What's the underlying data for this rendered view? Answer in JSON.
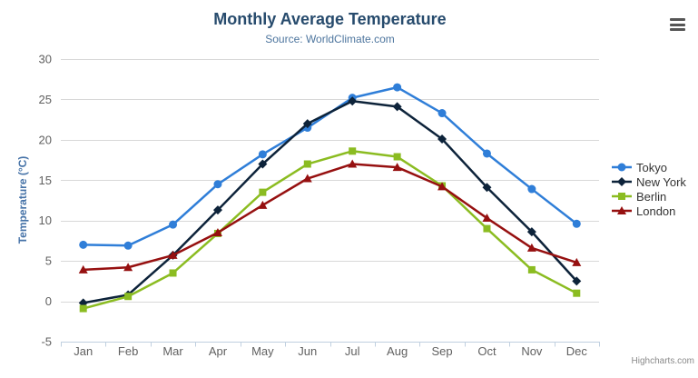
{
  "chart_data": {
    "type": "line",
    "title": "Monthly Average Temperature",
    "subtitle": "Source: WorldClimate.com",
    "xlabel": "",
    "ylabel": "Temperature (°C)",
    "ylim": [
      -5,
      30
    ],
    "yticks": [
      -5,
      0,
      5,
      10,
      15,
      20,
      25,
      30
    ],
    "grid": true,
    "legend_position": "right",
    "categories": [
      "Jan",
      "Feb",
      "Mar",
      "Apr",
      "May",
      "Jun",
      "Jul",
      "Aug",
      "Sep",
      "Oct",
      "Nov",
      "Dec"
    ],
    "series": [
      {
        "name": "Tokyo",
        "color": "#2f7ed8",
        "marker": "circle",
        "values": [
          7.0,
          6.9,
          9.5,
          14.5,
          18.2,
          21.5,
          25.2,
          26.5,
          23.3,
          18.3,
          13.9,
          9.6
        ]
      },
      {
        "name": "New York",
        "color": "#0d233a",
        "marker": "diamond",
        "values": [
          -0.2,
          0.8,
          5.7,
          11.3,
          17.0,
          22.0,
          24.8,
          24.1,
          20.1,
          14.1,
          8.6,
          2.5
        ]
      },
      {
        "name": "Berlin",
        "color": "#8bbc21",
        "marker": "square",
        "values": [
          -0.9,
          0.6,
          3.5,
          8.4,
          13.5,
          17.0,
          18.6,
          17.9,
          14.3,
          9.0,
          3.9,
          1.0
        ]
      },
      {
        "name": "London",
        "color": "#961010",
        "marker": "triangle",
        "values": [
          3.9,
          4.2,
          5.7,
          8.5,
          11.9,
          15.2,
          17.0,
          16.6,
          14.2,
          10.3,
          6.6,
          4.8
        ]
      }
    ],
    "colors": {
      "gridline": "#d8d8d8",
      "axis_line": "#c0d0e0",
      "tick_label": "#606060"
    }
  },
  "export_menu": {
    "icon": "hamburger-menu-icon"
  },
  "credit": {
    "label": "Highcharts.com"
  }
}
